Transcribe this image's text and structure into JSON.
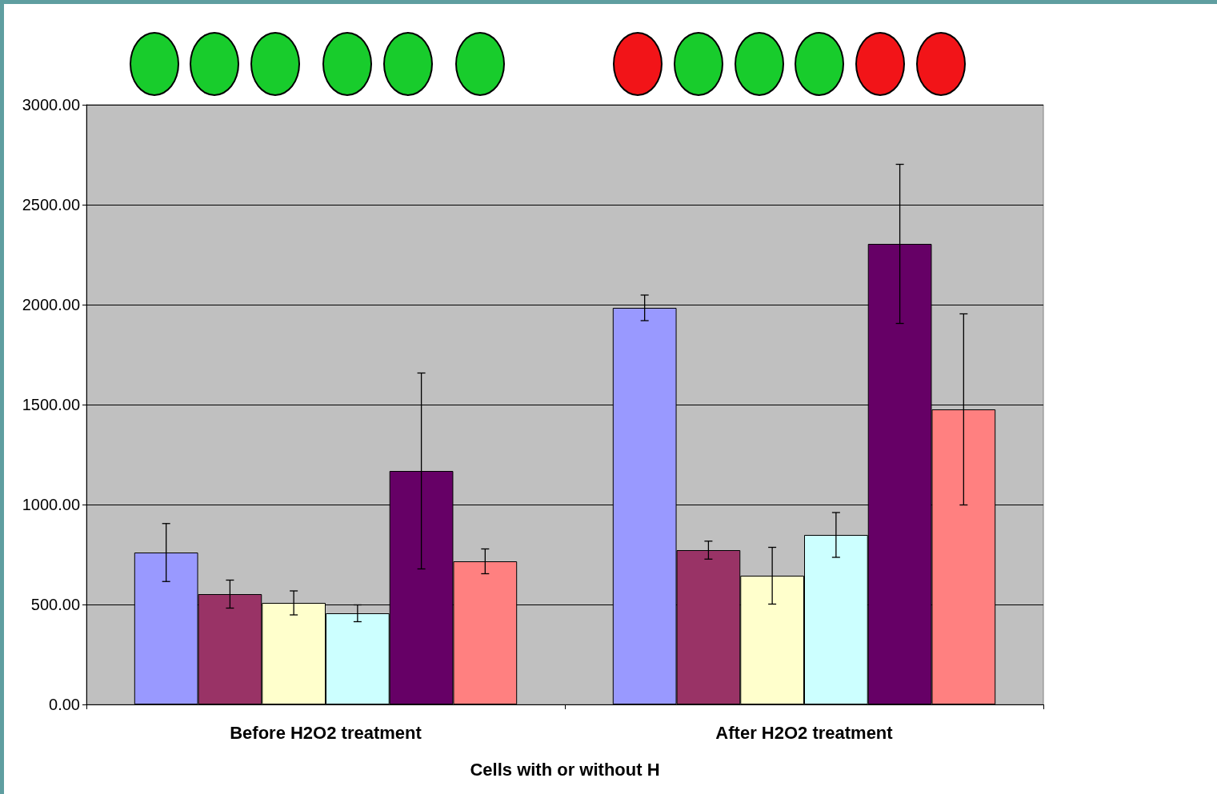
{
  "chart_data": {
    "type": "bar",
    "xlabel": "Cells with or without H",
    "categories": [
      "Before H2O2 treatment",
      "After H2O2 treatment"
    ],
    "series": [
      {
        "color": "#9999ff",
        "values": [
          760,
          1984
        ],
        "errors": [
          145,
          64
        ]
      },
      {
        "color": "#993366",
        "values": [
          552,
          772
        ],
        "errors": [
          70,
          45
        ]
      },
      {
        "color": "#ffffcc",
        "values": [
          508,
          644
        ],
        "errors": [
          60,
          142
        ]
      },
      {
        "color": "#ccffff",
        "values": [
          456,
          848
        ],
        "errors": [
          42,
          112
        ]
      },
      {
        "color": "#660066",
        "values": [
          1168,
          2304
        ],
        "errors": [
          490,
          398
        ]
      },
      {
        "color": "#ff8080",
        "values": [
          716,
          1476
        ],
        "errors": [
          62,
          478
        ]
      }
    ],
    "ylim": [
      0,
      3000
    ],
    "yticks": [
      {
        "value": 0,
        "label": "0.00"
      },
      {
        "value": 500,
        "label": "500.00"
      },
      {
        "value": 1000,
        "label": "1000.00"
      },
      {
        "value": 1500,
        "label": "1500.00"
      },
      {
        "value": 2000,
        "label": "2000.00"
      },
      {
        "value": 2500,
        "label": "2500.00"
      },
      {
        "value": 3000,
        "label": "3000.00"
      }
    ],
    "grid": "y"
  }
}
